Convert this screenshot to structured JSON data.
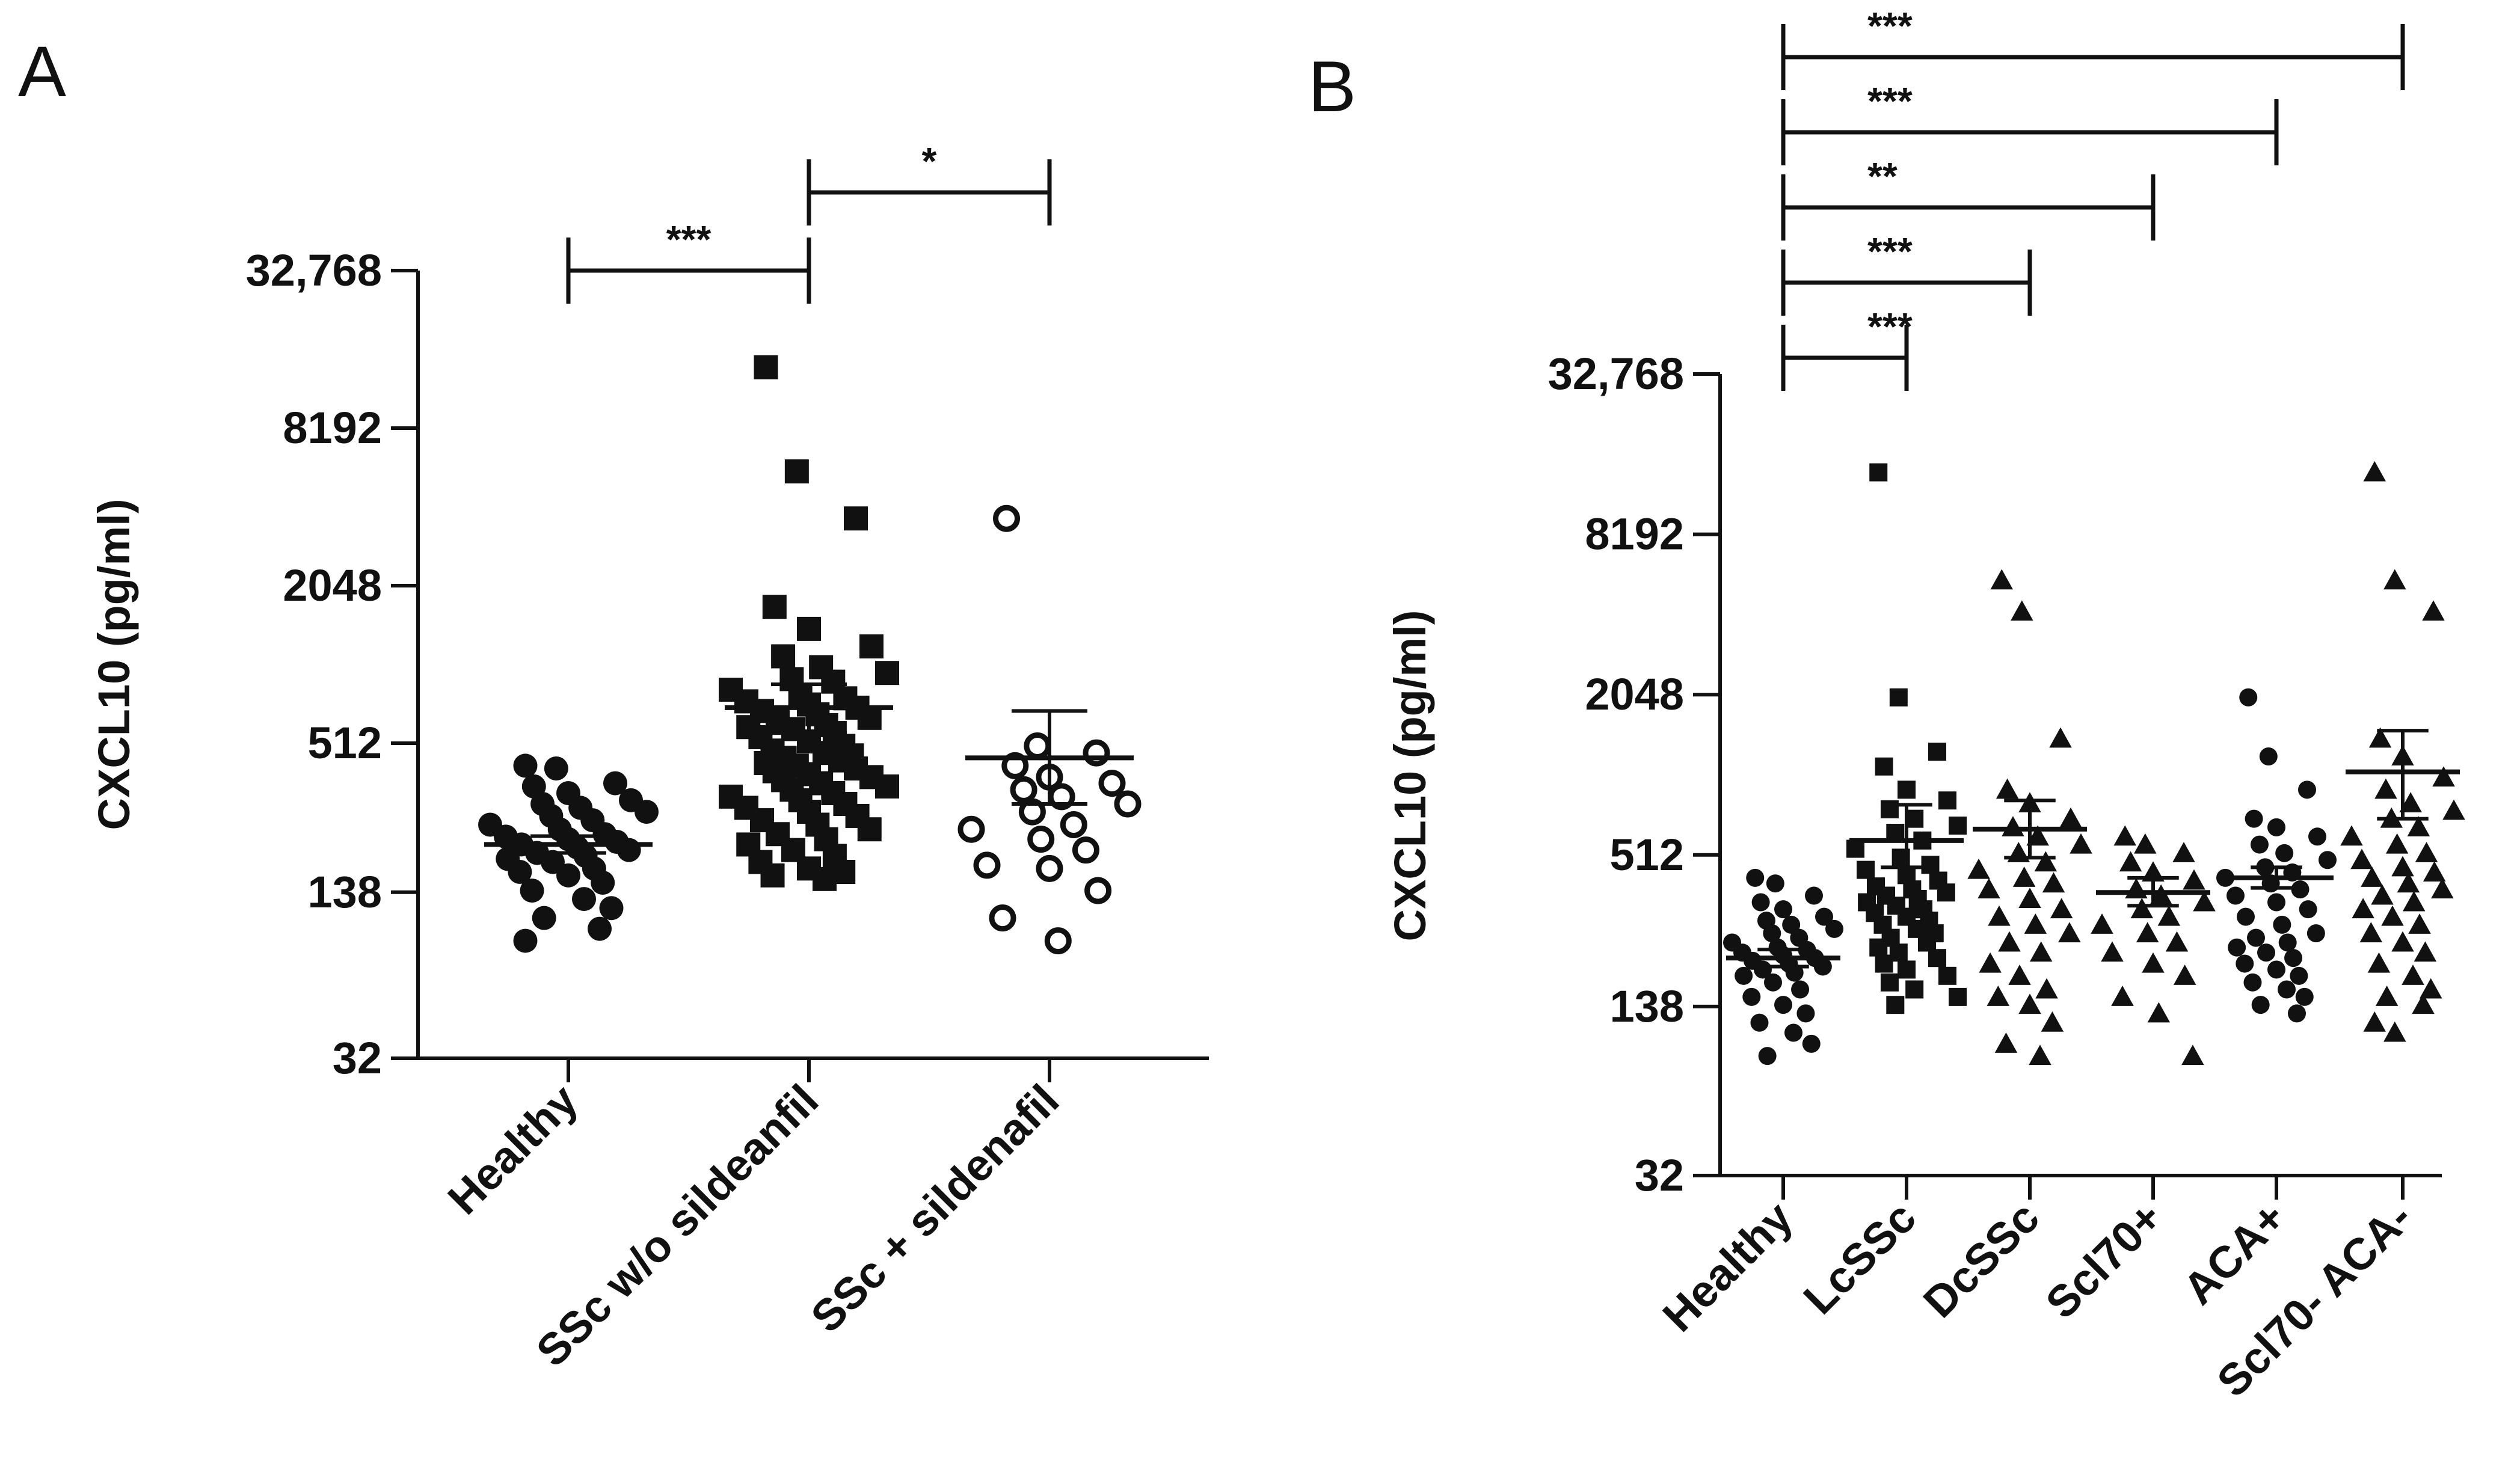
{
  "figure": {
    "panels": [
      "A",
      "B"
    ]
  },
  "chart_data": [
    {
      "panel": "A",
      "type": "scatter",
      "title": "",
      "xlabel": "",
      "ylabel": "CXCL10 (pg/ml)",
      "yscale": "log2",
      "ylim": [
        32,
        32768
      ],
      "yticks": [
        32,
        138,
        512,
        2048,
        8192,
        32768
      ],
      "ytick_labels": [
        "32",
        "138",
        "512",
        "2048",
        "8192",
        "32,768"
      ],
      "categories": [
        "Healthy",
        "SSc w/o sildeanfil",
        "SSc + sildenafil"
      ],
      "marker": [
        "circle",
        "square",
        "open-circle"
      ],
      "groups": [
        {
          "name": "Healthy",
          "mean": 210,
          "sem_low": 195,
          "sem_high": 226,
          "points": [
            420,
            410,
            360,
            350,
            330,
            310,
            300,
            290,
            280,
            270,
            260,
            250,
            240,
            230,
            225,
            220,
            215,
            210,
            205,
            200,
            195,
            190,
            185,
            180,
            170,
            165,
            160,
            150,
            140,
            130,
            120,
            110,
            100,
            90
          ]
        },
        {
          "name": "SSc w/o sildeanfil",
          "mean": 700,
          "sem_low": 560,
          "sem_high": 860,
          "points": [
            14000,
            5600,
            3700,
            1700,
            1400,
            1200,
            1100,
            1000,
            950,
            900,
            880,
            820,
            780,
            760,
            740,
            720,
            700,
            680,
            660,
            640,
            620,
            600,
            590,
            580,
            560,
            540,
            520,
            500,
            480,
            470,
            460,
            450,
            440,
            430,
            420,
            410,
            400,
            390,
            380,
            370,
            360,
            350,
            340,
            330,
            320,
            310,
            300,
            290,
            280,
            270,
            260,
            250,
            240,
            230,
            220,
            210,
            200,
            190,
            180,
            170,
            165,
            160,
            155
          ]
        },
        {
          "name": "SSc + sildenafil",
          "mean": 450,
          "sem_low": 300,
          "sem_high": 680,
          "points": [
            3700,
            500,
            470,
            420,
            380,
            360,
            340,
            320,
            300,
            280,
            250,
            240,
            220,
            200,
            175,
            170,
            140,
            110,
            90
          ]
        }
      ],
      "comparisons": [
        {
          "from": "Healthy",
          "to": "SSc w/o sildeanfil",
          "label": "***",
          "level": 1
        },
        {
          "from": "SSc w/o sildeanfil",
          "to": "SSc + sildenafil",
          "label": "*",
          "level": 2
        }
      ]
    },
    {
      "panel": "B",
      "type": "scatter",
      "title": "",
      "xlabel": "",
      "ylabel": "CXCL10 (pg/ml)",
      "yscale": "log2",
      "ylim": [
        32,
        32768
      ],
      "yticks": [
        32,
        138,
        512,
        2048,
        8192,
        32768
      ],
      "ytick_labels": [
        "32",
        "138",
        "512",
        "2048",
        "8192",
        "32,768"
      ],
      "categories": [
        "Healthy",
        "LcSSc",
        "DcSSc",
        "Scl70+",
        "ACA+",
        "Scl70- ACA-"
      ],
      "marker": [
        "circle",
        "square",
        "triangle",
        "triangle",
        "circle",
        "triangle"
      ],
      "groups": [
        {
          "name": "Healthy",
          "mean": 210,
          "sem_low": 195,
          "sem_high": 226,
          "points": [
            420,
            400,
            360,
            340,
            320,
            300,
            290,
            280,
            270,
            260,
            250,
            240,
            230,
            225,
            220,
            215,
            210,
            205,
            200,
            195,
            190,
            185,
            180,
            170,
            160,
            150,
            140,
            130,
            120,
            110,
            100,
            90
          ]
        },
        {
          "name": "LcSSc",
          "mean": 580,
          "sem_low": 460,
          "sem_high": 790,
          "points": [
            14000,
            2000,
            1250,
            1100,
            900,
            820,
            760,
            700,
            660,
            620,
            580,
            540,
            500,
            470,
            450,
            430,
            410,
            390,
            380,
            370,
            360,
            350,
            340,
            330,
            320,
            310,
            300,
            290,
            280,
            270,
            260,
            250,
            240,
            230,
            220,
            210,
            200,
            190,
            180,
            170,
            160,
            150,
            140
          ]
        },
        {
          "name": "DcSSc",
          "mean": 640,
          "sem_low": 500,
          "sem_high": 820,
          "points": [
            5500,
            4200,
            1400,
            900,
            800,
            700,
            650,
            600,
            560,
            520,
            480,
            450,
            420,
            400,
            380,
            350,
            320,
            300,
            280,
            260,
            240,
            220,
            200,
            180,
            160,
            150,
            140,
            120,
            100,
            90
          ]
        },
        {
          "name": "Scl70+",
          "mean": 370,
          "sem_low": 330,
          "sem_high": 420,
          "points": [
            600,
            560,
            520,
            480,
            440,
            410,
            380,
            360,
            340,
            320,
            300,
            280,
            260,
            240,
            220,
            200,
            180,
            150,
            130,
            90
          ]
        },
        {
          "name": "ACA+",
          "mean": 420,
          "sem_low": 385,
          "sem_high": 460,
          "points": [
            2000,
            1200,
            900,
            700,
            650,
            600,
            560,
            520,
            490,
            460,
            440,
            420,
            400,
            380,
            360,
            340,
            320,
            300,
            280,
            260,
            250,
            240,
            230,
            220,
            210,
            200,
            190,
            180,
            170,
            160,
            150,
            140,
            130
          ]
        },
        {
          "name": "Scl70- ACA-",
          "mean": 1050,
          "sem_low": 700,
          "sem_high": 1500,
          "points": [
            14000,
            5500,
            4200,
            1400,
            1200,
            1000,
            900,
            800,
            750,
            700,
            650,
            600,
            560,
            520,
            490,
            460,
            440,
            420,
            400,
            380,
            360,
            340,
            320,
            300,
            280,
            260,
            240,
            220,
            200,
            180,
            160,
            150,
            140,
            120,
            110
          ]
        }
      ],
      "comparisons": [
        {
          "from": "Healthy",
          "to": "LcSSc",
          "label": "***",
          "level": 1
        },
        {
          "from": "Healthy",
          "to": "DcSSc",
          "label": "***",
          "level": 2
        },
        {
          "from": "Healthy",
          "to": "Scl70+",
          "label": "**",
          "level": 3
        },
        {
          "from": "Healthy",
          "to": "ACA+",
          "label": "***",
          "level": 4
        },
        {
          "from": "Healthy",
          "to": "Scl70- ACA-",
          "label": "***",
          "level": 5
        }
      ]
    }
  ]
}
